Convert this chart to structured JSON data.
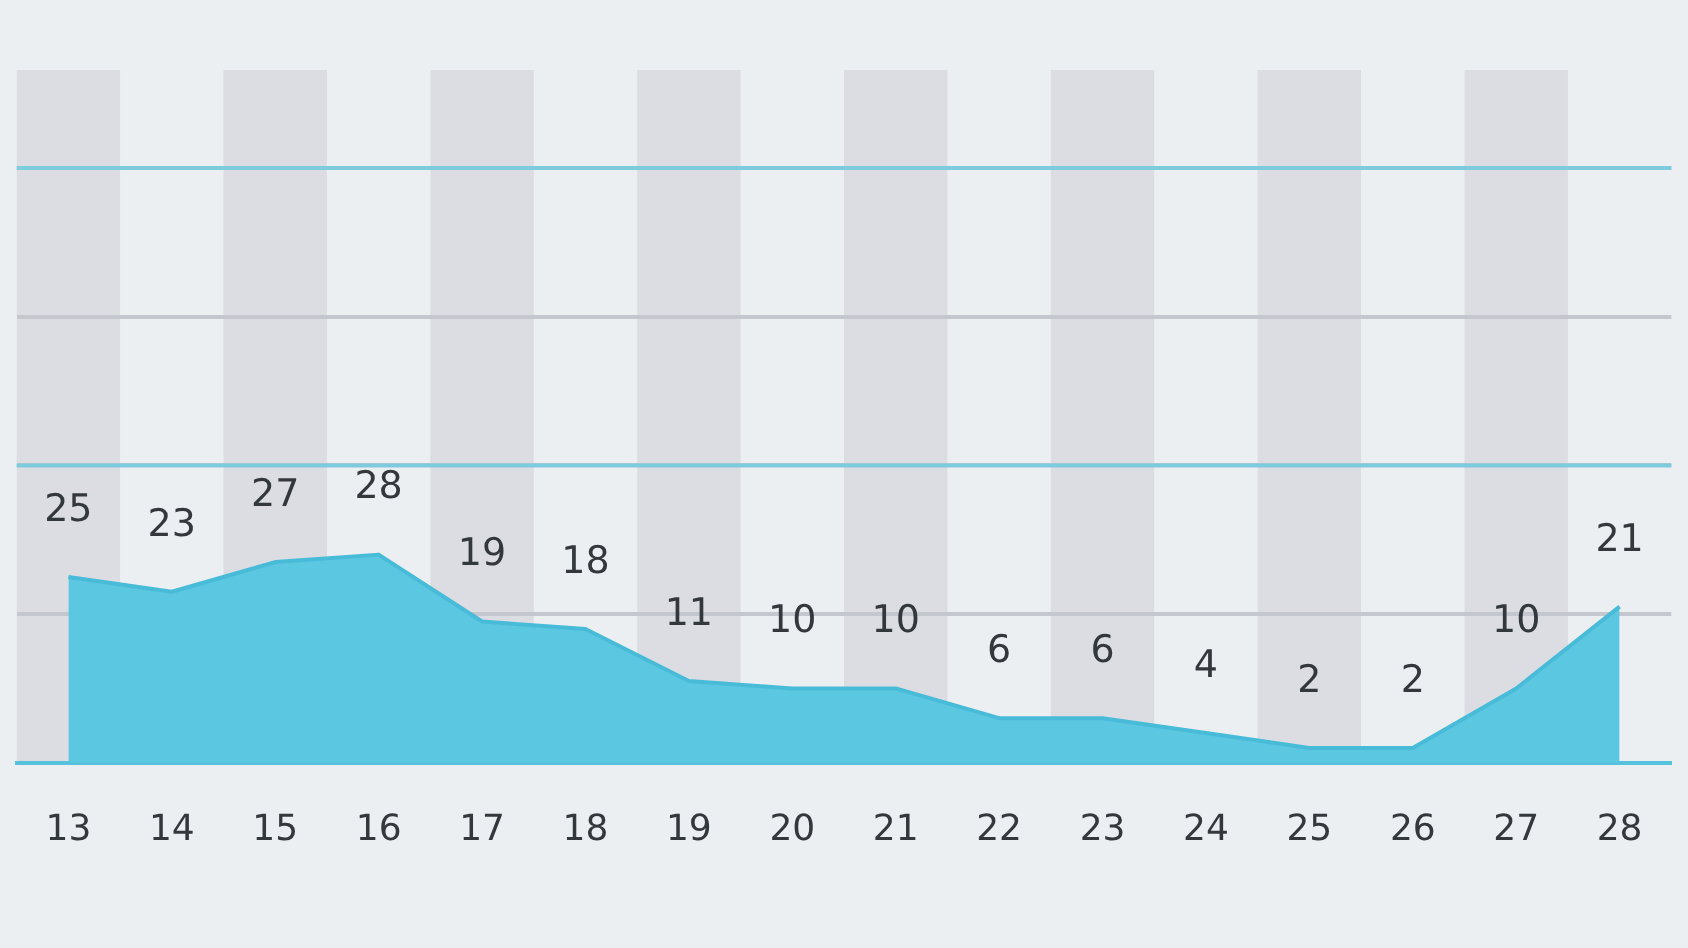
{
  "chart_data": {
    "type": "area",
    "x": [
      13,
      14,
      15,
      16,
      17,
      18,
      19,
      20,
      21,
      22,
      23,
      24,
      25,
      26,
      27,
      28
    ],
    "values": [
      25,
      23,
      27,
      28,
      19,
      18,
      11,
      10,
      10,
      6,
      6,
      4,
      2,
      2,
      10,
      21
    ],
    "color": "#5bc7e1",
    "xlim": [
      12.5,
      28.5
    ],
    "xticks": [
      13,
      14,
      15,
      16,
      17,
      18,
      19,
      20,
      21,
      22,
      23,
      24,
      25,
      26,
      27,
      28
    ],
    "ylim": [
      0,
      80
    ],
    "yticks": [
      {
        "value": 20,
        "label": null
      },
      {
        "value": 40,
        "label": null
      },
      {
        "value": 60,
        "label": null
      },
      {
        "value": 80,
        "label": null
      }
    ],
    "tick_labels": "x",
    "grid": "y",
    "data_labels": true,
    "marker": "none",
    "ref_lines": [
      {
        "axis": "y",
        "value": 40,
        "color": "#7dcbdc"
      },
      {
        "axis": "y",
        "value": 80,
        "color": "#7dcbdc"
      }
    ],
    "bands": [
      {
        "axis": "x",
        "from": 12.5,
        "to": 13.5,
        "color": "#dcdde2"
      },
      {
        "axis": "x",
        "from": 14.5,
        "to": 15.5,
        "color": "#dcdde2"
      },
      {
        "axis": "x",
        "from": 16.5,
        "to": 17.5,
        "color": "#dcdde2"
      },
      {
        "axis": "x",
        "from": 18.5,
        "to": 19.5,
        "color": "#dcdde2"
      },
      {
        "axis": "x",
        "from": 20.5,
        "to": 21.5,
        "color": "#dcdde2"
      },
      {
        "axis": "x",
        "from": 22.5,
        "to": 23.5,
        "color": "#dcdde2"
      },
      {
        "axis": "x",
        "from": 24.5,
        "to": 25.5,
        "color": "#dcdde2"
      },
      {
        "axis": "x",
        "from": 26.5,
        "to": 27.5,
        "color": "#dcdde2"
      }
    ]
  }
}
